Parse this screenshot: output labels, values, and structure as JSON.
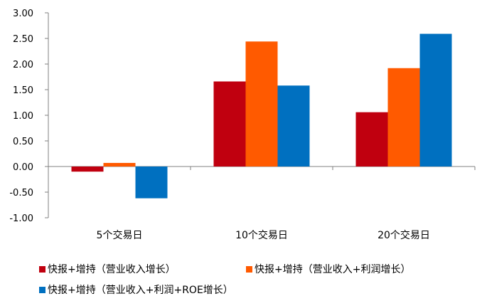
{
  "chart_data": {
    "type": "bar",
    "categories": [
      "5个交易日",
      "10个交易日",
      "20个交易日"
    ],
    "series": [
      {
        "name": "快报+增持（营业收入增长）",
        "color": "#C0000F",
        "values": [
          -0.1,
          1.66,
          1.06
        ]
      },
      {
        "name": "快报+增持（营业收入+利润增长）",
        "color": "#FF5A00",
        "values": [
          0.07,
          2.44,
          1.92
        ]
      },
      {
        "name": "快报+增持（营业收入+利润+ROE增长）",
        "color": "#0070C0",
        "values": [
          -0.62,
          1.58,
          2.59
        ]
      }
    ],
    "yticks": [
      "3.00",
      "2.50",
      "2.00",
      "1.50",
      "1.00",
      "0.50",
      "0.00",
      "-0.50",
      "-1.00"
    ],
    "ylim": [
      -1.0,
      3.0
    ],
    "grid": false,
    "legend_position": "bottom"
  }
}
